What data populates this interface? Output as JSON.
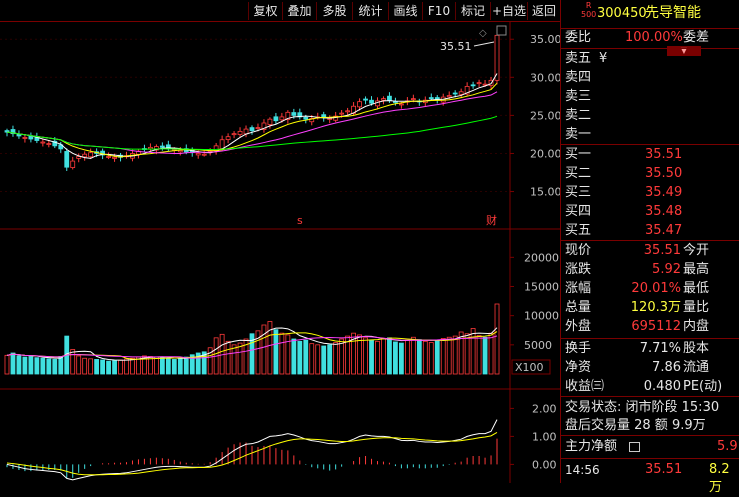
{
  "toolbar": {
    "buttons": [
      "复权",
      "叠加",
      "多股",
      "统计",
      "画线",
      "F10",
      "标记",
      "+自选",
      "返回"
    ]
  },
  "stock": {
    "badge_top": "R",
    "badge_bottom": "500",
    "code": "300450",
    "name": "先导智能"
  },
  "order_book": {
    "ratio_label": "委比",
    "ratio_value": "100.00%",
    "diff_label": "委差",
    "sell": [
      {
        "label": "卖五",
        "price": "¥",
        "vol": ""
      },
      {
        "label": "卖四",
        "price": "",
        "vol": ""
      },
      {
        "label": "卖三",
        "price": "",
        "vol": ""
      },
      {
        "label": "卖二",
        "price": "",
        "vol": ""
      },
      {
        "label": "卖一",
        "price": "",
        "vol": ""
      }
    ],
    "buy": [
      {
        "label": "买一",
        "price": "35.51"
      },
      {
        "label": "买二",
        "price": "35.50"
      },
      {
        "label": "买三",
        "price": "35.49"
      },
      {
        "label": "买四",
        "price": "35.48"
      },
      {
        "label": "买五",
        "price": "35.47"
      }
    ]
  },
  "quote": [
    {
      "l1": "现价",
      "v1": "35.51",
      "l2": "今开",
      "c": "red"
    },
    {
      "l1": "涨跌",
      "v1": "5.92",
      "l2": "最高",
      "c": "red"
    },
    {
      "l1": "涨幅",
      "v1": "20.01%",
      "l2": "最低",
      "c": "red"
    },
    {
      "l1": "总量",
      "v1": "120.3万",
      "l2": "量比",
      "c": "yellow"
    },
    {
      "l1": "外盘",
      "v1": "695112",
      "l2": "内盘",
      "c": "red"
    }
  ],
  "fundamentals": [
    {
      "l1": "换手",
      "v1": "7.71%",
      "l2": "股本"
    },
    {
      "l1": "净资",
      "v1": "7.86",
      "l2": "流通"
    },
    {
      "l1": "收益㈢",
      "v1": "0.480",
      "l2": "PE(动)"
    }
  ],
  "trade_status": {
    "line1": "交易状态: 闭市阶段 15:30",
    "line2": "盘后交易量 28 额 9.9万"
  },
  "main_flow": {
    "label": "主力净额",
    "value": "5.9"
  },
  "tick": {
    "time": "14:56",
    "price": "35.51",
    "vol": "8.2万"
  },
  "price_axis": [
    "35.00",
    "30.00",
    "25.00",
    "20.00",
    "15.00"
  ],
  "volume_axis": [
    "20000",
    "15000",
    "10000",
    "5000"
  ],
  "volume_unit": "X100",
  "macd_axis": [
    "2.00",
    "1.00",
    "0.00"
  ],
  "last_price_tag": "35.51",
  "event_markers": {
    "s": "s",
    "cai": "财"
  },
  "colors": {
    "up": "#ff3a3a",
    "down": "#40e0e0",
    "ma5": "#ffffff",
    "ma10": "#ffff00",
    "ma20": "#ff40ff",
    "ma60": "#00ff00",
    "grid": "#7a0000"
  },
  "chart_data": {
    "type": "candlestick",
    "closes": [
      22.8,
      22.6,
      22.3,
      22.1,
      21.9,
      21.7,
      21.5,
      21.3,
      21.0,
      20.6,
      18.2,
      19.0,
      19.6,
      19.9,
      20.1,
      20.0,
      19.8,
      19.6,
      19.5,
      19.5,
      19.7,
      20.0,
      20.3,
      20.6,
      20.8,
      20.9,
      20.8,
      20.6,
      20.5,
      20.4,
      20.2,
      20.1,
      20.0,
      19.9,
      20.3,
      21.0,
      21.8,
      22.2,
      22.6,
      22.9,
      23.2,
      23.0,
      23.4,
      24.0,
      24.5,
      24.3,
      24.8,
      25.4,
      25.0,
      24.8,
      24.5,
      24.6,
      24.8,
      24.7,
      24.6,
      24.9,
      25.3,
      25.6,
      26.2,
      26.8,
      27.0,
      26.6,
      26.9,
      27.2,
      27.0,
      26.7,
      26.5,
      26.9,
      27.2,
      26.8,
      27.0,
      27.3,
      27.1,
      27.4,
      27.6,
      27.9,
      28.1,
      28.8,
      29.0,
      29.3,
      29.1,
      29.6,
      35.51
    ],
    "volumes": [
      3200,
      3600,
      3100,
      2900,
      3000,
      2800,
      2700,
      2600,
      2500,
      3000,
      6500,
      4200,
      3100,
      2700,
      2600,
      2500,
      2400,
      2200,
      2300,
      2400,
      2600,
      2700,
      2900,
      3100,
      3000,
      2900,
      2800,
      2600,
      2500,
      2700,
      2900,
      3300,
      3600,
      3800,
      4500,
      6200,
      6800,
      5600,
      5000,
      5300,
      6000,
      6900,
      7400,
      8400,
      9000,
      7600,
      7000,
      6700,
      6000,
      5600,
      5800,
      5200,
      5000,
      4800,
      5000,
      5400,
      6000,
      6500,
      7000,
      6700,
      6200,
      5800,
      5600,
      6000,
      6200,
      5500,
      5300,
      5800,
      6300,
      5900,
      5600,
      5400,
      5800,
      6100,
      6300,
      6500,
      7200,
      6900,
      7800,
      6600,
      6300,
      7000,
      12000
    ],
    "macd_dif": [
      0.0,
      -0.05,
      -0.1,
      -0.15,
      -0.18,
      -0.2,
      -0.22,
      -0.24,
      -0.26,
      -0.3,
      -0.5,
      -0.55,
      -0.5,
      -0.45,
      -0.4,
      -0.37,
      -0.35,
      -0.34,
      -0.33,
      -0.32,
      -0.3,
      -0.26,
      -0.22,
      -0.18,
      -0.14,
      -0.1,
      -0.08,
      -0.07,
      -0.07,
      -0.08,
      -0.09,
      -0.1,
      -0.1,
      -0.1,
      -0.06,
      0.05,
      0.2,
      0.35,
      0.5,
      0.62,
      0.72,
      0.74,
      0.8,
      0.9,
      1.0,
      1.02,
      1.05,
      1.1,
      1.05,
      0.98,
      0.9,
      0.85,
      0.82,
      0.78,
      0.74,
      0.74,
      0.78,
      0.82,
      0.9,
      1.0,
      1.05,
      1.02,
      1.0,
      1.0,
      0.98,
      0.92,
      0.86,
      0.85,
      0.86,
      0.82,
      0.8,
      0.8,
      0.78,
      0.8,
      0.82,
      0.86,
      0.9,
      1.0,
      1.06,
      1.1,
      1.1,
      1.18,
      1.6
    ],
    "macd_dea": [
      0.05,
      0.03,
      0.0,
      -0.03,
      -0.06,
      -0.09,
      -0.11,
      -0.14,
      -0.16,
      -0.19,
      -0.25,
      -0.31,
      -0.35,
      -0.37,
      -0.37,
      -0.37,
      -0.37,
      -0.36,
      -0.36,
      -0.35,
      -0.34,
      -0.33,
      -0.31,
      -0.28,
      -0.25,
      -0.22,
      -0.19,
      -0.17,
      -0.15,
      -0.13,
      -0.12,
      -0.12,
      -0.11,
      -0.11,
      -0.1,
      -0.07,
      -0.02,
      0.05,
      0.14,
      0.23,
      0.33,
      0.41,
      0.49,
      0.57,
      0.66,
      0.73,
      0.79,
      0.85,
      0.89,
      0.91,
      0.91,
      0.9,
      0.89,
      0.87,
      0.85,
      0.83,
      0.82,
      0.82,
      0.84,
      0.87,
      0.9,
      0.92,
      0.94,
      0.95,
      0.95,
      0.95,
      0.93,
      0.92,
      0.91,
      0.89,
      0.87,
      0.86,
      0.84,
      0.83,
      0.83,
      0.83,
      0.85,
      0.88,
      0.91,
      0.95,
      0.98,
      1.02,
      1.14
    ]
  }
}
